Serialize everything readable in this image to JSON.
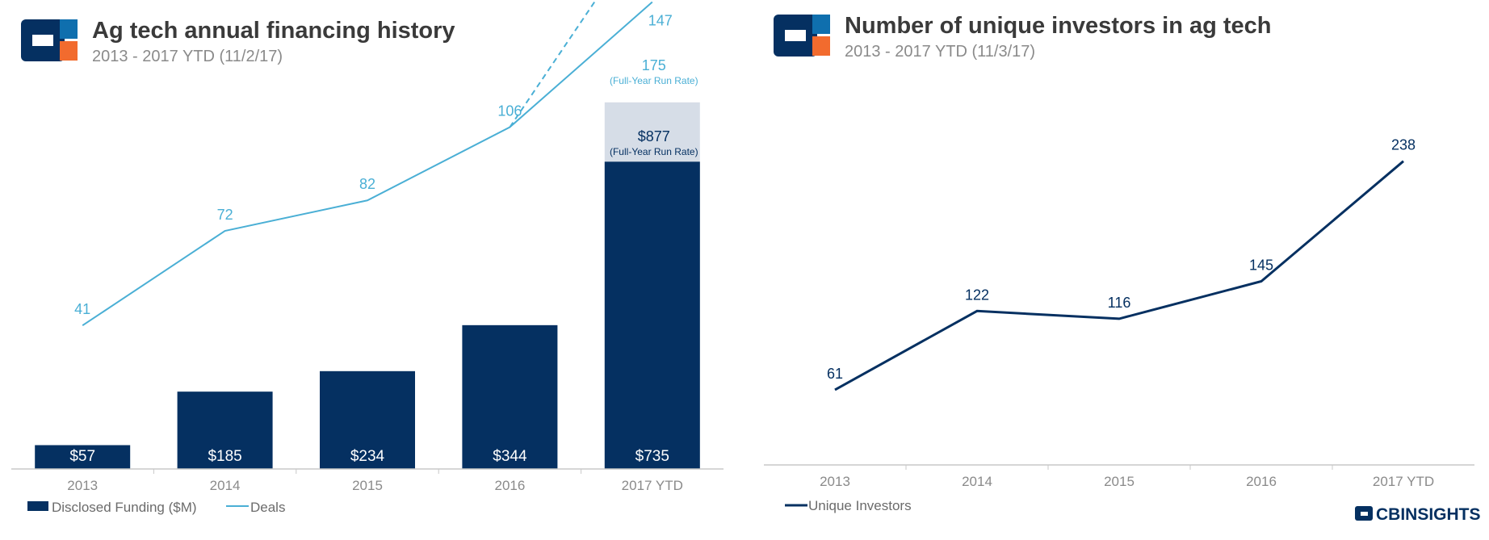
{
  "charts": [
    {
      "title": "Ag tech annual financing history",
      "subtitle": "2013 - 2017 YTD (11/2/17)"
    },
    {
      "title": "Number of unique investors in ag tech",
      "subtitle": "2013 - 2017 YTD (11/3/17)"
    }
  ],
  "brand": {
    "text": "CBINSIGHTS"
  },
  "colors": {
    "navy": "#053061",
    "light_blue": "#4aafd5",
    "run_rate_fill": "#d6dde7",
    "orange": "#f26b2e",
    "logo_blue": "#0f6fae"
  },
  "chart_data": [
    {
      "type": "bar",
      "categories": [
        "2013",
        "2014",
        "2015",
        "2016",
        "2017 YTD"
      ],
      "series": [
        {
          "name": "Disclosed Funding ($M)",
          "type": "bar",
          "values": [
            57,
            185,
            234,
            344,
            735
          ],
          "labels": [
            "$57",
            "$185",
            "$234",
            "$344",
            "$735"
          ]
        },
        {
          "name": "Deals",
          "type": "line",
          "values": [
            41,
            72,
            82,
            106,
            147
          ],
          "labels": [
            "41",
            "72",
            "82",
            "106",
            "147"
          ]
        }
      ],
      "run_rate": {
        "funding": {
          "value": 877,
          "label": "$877",
          "note": "(Full-Year Run Rate)"
        },
        "deals": {
          "value": 175,
          "label": "175",
          "note": "(Full-Year Run Rate)"
        }
      },
      "legend": [
        "Disclosed Funding ($M)",
        "Deals"
      ],
      "legend_position": "bottom-left"
    },
    {
      "type": "line",
      "categories": [
        "2013",
        "2014",
        "2015",
        "2016",
        "2017 YTD"
      ],
      "series": [
        {
          "name": "Unique Investors",
          "values": [
            61,
            122,
            116,
            145,
            238
          ],
          "labels": [
            "61",
            "122",
            "116",
            "145",
            "238"
          ]
        }
      ],
      "legend": [
        "Unique Investors"
      ],
      "legend_position": "bottom-left"
    }
  ]
}
